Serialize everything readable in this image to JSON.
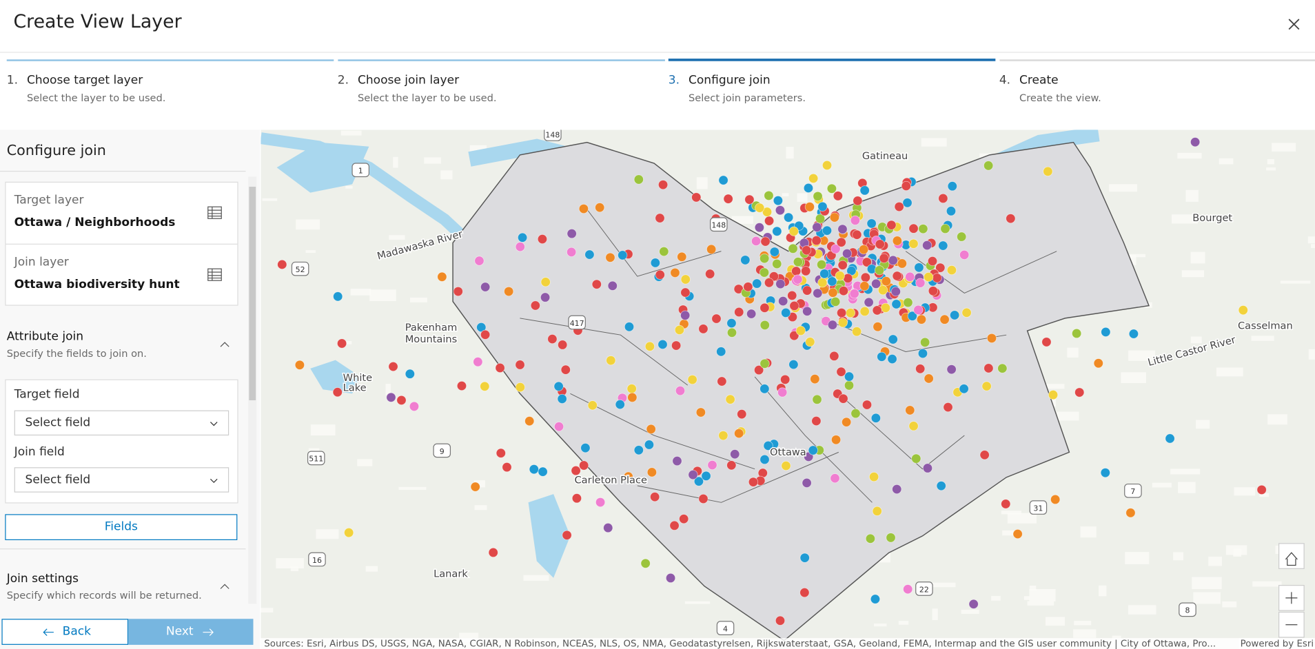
{
  "header": {
    "title": "Create View Layer"
  },
  "steps": [
    {
      "number": "1.",
      "title": "Choose target layer",
      "subtitle": "Select the layer to be used."
    },
    {
      "number": "2.",
      "title": "Choose join layer",
      "subtitle": "Select the layer to be used."
    },
    {
      "number": "3.",
      "title": "Configure join",
      "subtitle": "Select join parameters."
    },
    {
      "number": "4.",
      "title": "Create",
      "subtitle": "Create the view."
    }
  ],
  "panel": {
    "title": "Configure join",
    "target_layer": {
      "label": "Target layer",
      "value": "Ottawa / Neighborhoods"
    },
    "join_layer": {
      "label": "Join layer",
      "value": "Ottawa biodiversity hunt"
    },
    "attribute_join": {
      "title": "Attribute join",
      "subtitle": "Specify the fields to join on."
    },
    "target_field": {
      "label": "Target field",
      "placeholder": "Select field"
    },
    "join_field": {
      "label": "Join field",
      "placeholder": "Select field"
    },
    "fields_button": "Fields",
    "join_settings": {
      "title": "Join settings",
      "subtitle": "Specify which records will be returned."
    }
  },
  "footer": {
    "back": "Back",
    "next": "Next"
  },
  "map": {
    "labels": [
      "Pakenham",
      "Mountains",
      "White",
      "Lake",
      "Carleton Place",
      "Lanark",
      "Ottawa",
      "Gatineau",
      "Bourget",
      "Casselman",
      "Madawaska River",
      "Little Castor River"
    ],
    "route_shields": [
      "148",
      "1",
      "52",
      "417",
      "148",
      "9",
      "511",
      "16",
      "31",
      "7",
      "8",
      "22",
      "4"
    ],
    "attribution": "Sources: Esri, Airbus DS, USGS, NGA, NASA, CGIAR, N Robinson, NCEAS, NLS, OS, NMA, Geodatastyrelsen, Rijkswaterstaat, GSA, Geoland, FEMA, Intermap and the GIS user community | City of Ottawa, Pro...",
    "powered_by": "Powered by Esri"
  }
}
